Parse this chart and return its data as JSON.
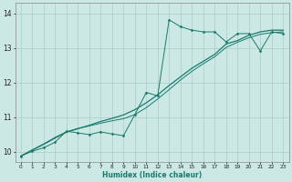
{
  "xlabel": "Humidex (Indice chaleur)",
  "xlim": [
    -0.5,
    23.5
  ],
  "ylim": [
    9.7,
    14.3
  ],
  "xticks": [
    0,
    1,
    2,
    3,
    4,
    5,
    6,
    7,
    8,
    9,
    10,
    11,
    12,
    13,
    14,
    15,
    16,
    17,
    18,
    19,
    20,
    21,
    22,
    23
  ],
  "yticks": [
    10,
    11,
    12,
    13,
    14
  ],
  "bg_color": "#cce8e4",
  "line_color": "#1a7a6e",
  "grid_color": "#aaccc8",
  "data_x": [
    0,
    1,
    2,
    3,
    4,
    5,
    6,
    7,
    8,
    9,
    10,
    11,
    12,
    13,
    14,
    15,
    16,
    17,
    18,
    19,
    20,
    21,
    22,
    23
  ],
  "data_y1": [
    9.88,
    10.02,
    10.12,
    10.28,
    10.6,
    10.55,
    10.5,
    10.58,
    10.52,
    10.47,
    11.08,
    11.72,
    11.62,
    13.82,
    13.62,
    13.52,
    13.47,
    13.47,
    13.18,
    13.42,
    13.42,
    12.92,
    13.47,
    13.42
  ],
  "data_y2": [
    9.88,
    10.05,
    10.22,
    10.4,
    10.57,
    10.67,
    10.77,
    10.88,
    10.97,
    11.07,
    11.22,
    11.42,
    11.65,
    11.92,
    12.17,
    12.42,
    12.62,
    12.82,
    13.12,
    13.22,
    13.37,
    13.47,
    13.52,
    13.52
  ],
  "data_y3": [
    9.88,
    10.06,
    10.23,
    10.42,
    10.58,
    10.68,
    10.75,
    10.83,
    10.9,
    10.96,
    11.08,
    11.28,
    11.53,
    11.8,
    12.08,
    12.33,
    12.55,
    12.75,
    13.02,
    13.17,
    13.3,
    13.4,
    13.45,
    13.47
  ]
}
